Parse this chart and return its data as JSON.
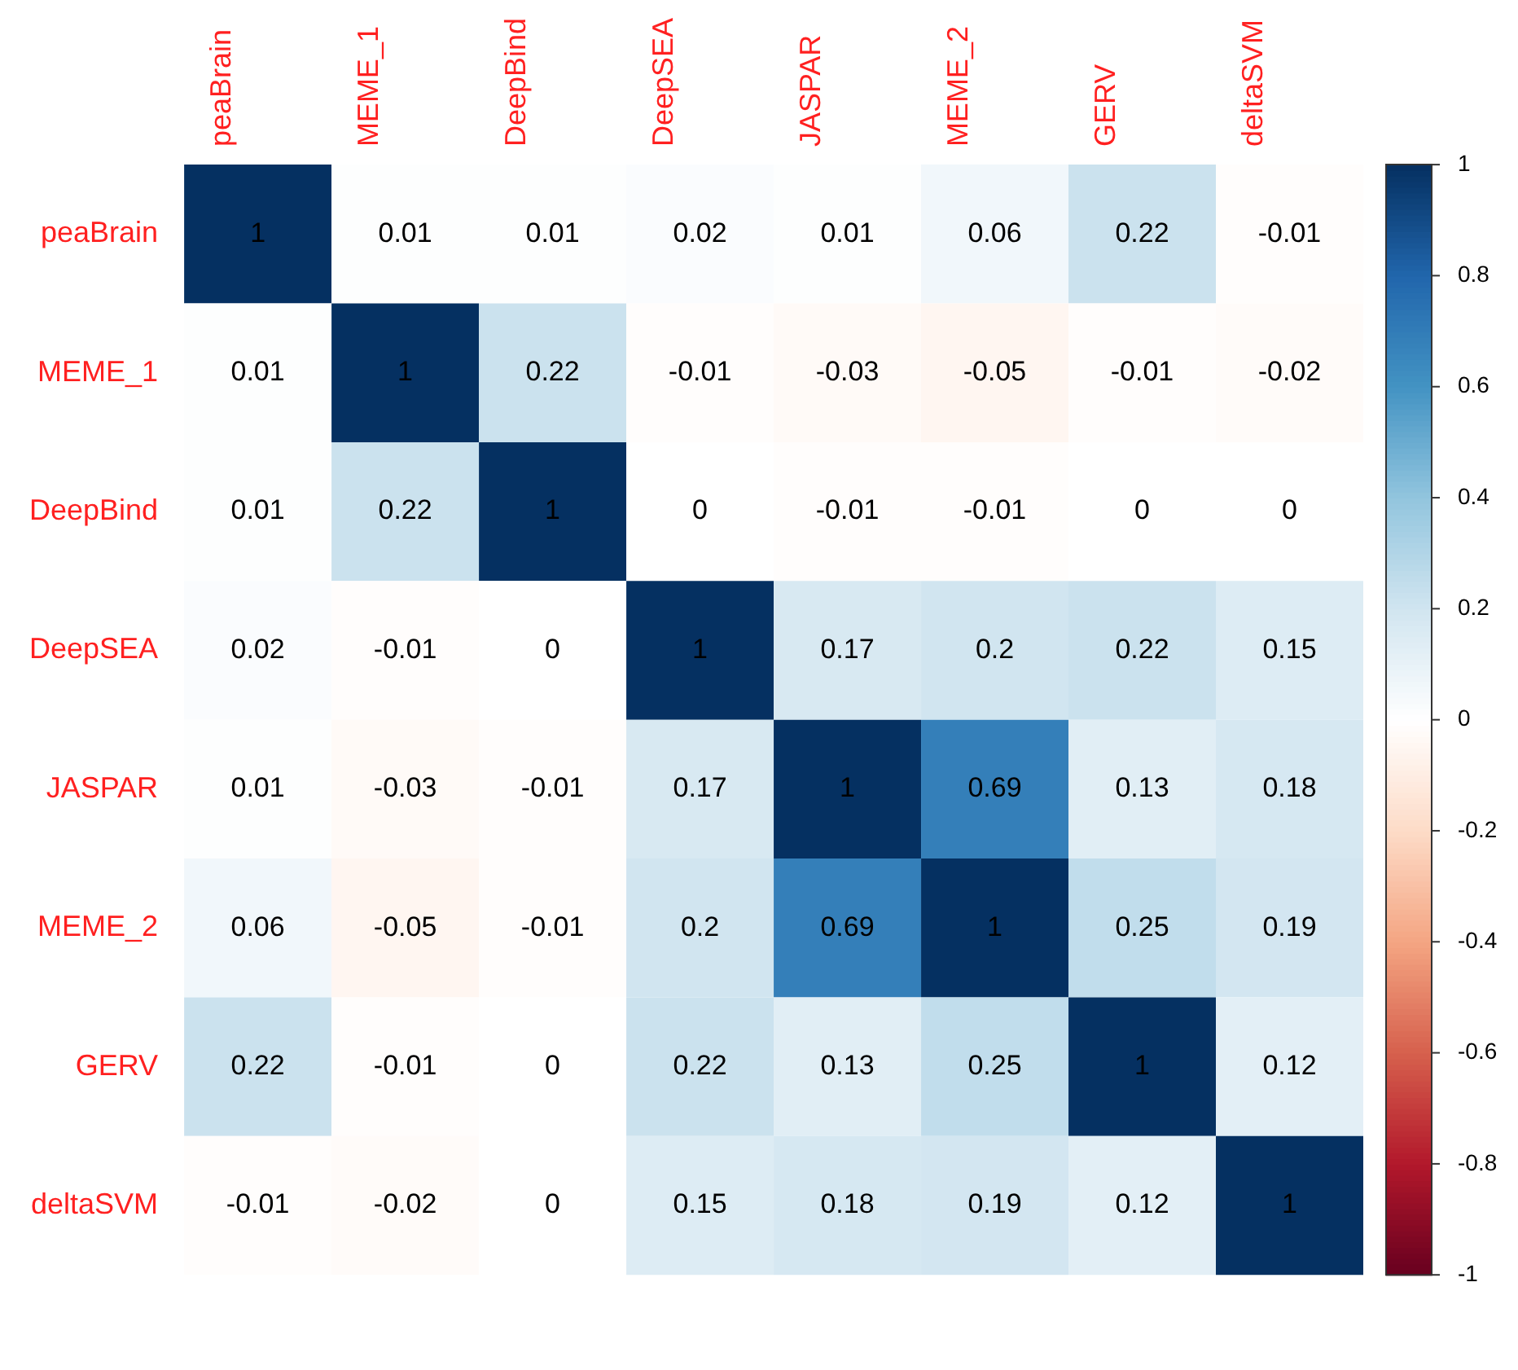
{
  "chart_data": {
    "type": "heatmap",
    "categories": [
      "peaBrain",
      "MEME_1",
      "DeepBind",
      "DeepSEA",
      "JASPAR",
      "MEME_2",
      "GERV",
      "deltaSVM"
    ],
    "y_categories": [
      "peaBrain",
      "MEME_1",
      "DeepBind",
      "DeepSEA",
      "JASPAR",
      "MEME_2",
      "GERV",
      "deltaSVM"
    ],
    "cells": [
      [
        1,
        0.01,
        0.01,
        0.02,
        0.01,
        0.06,
        0.22,
        -0.01
      ],
      [
        0.01,
        1,
        0.22,
        -0.01,
        -0.03,
        -0.05,
        -0.01,
        -0.02
      ],
      [
        0.01,
        0.22,
        1,
        0,
        -0.01,
        -0.01,
        0,
        0
      ],
      [
        0.02,
        -0.01,
        0,
        1,
        0.17,
        0.2,
        0.22,
        0.15
      ],
      [
        0.01,
        -0.03,
        -0.01,
        0.17,
        1,
        0.69,
        0.13,
        0.18
      ],
      [
        0.06,
        -0.05,
        -0.01,
        0.2,
        0.69,
        1,
        0.25,
        0.19
      ],
      [
        0.22,
        -0.01,
        0,
        0.22,
        0.13,
        0.25,
        1,
        0.12
      ],
      [
        -0.01,
        -0.02,
        0,
        0.15,
        0.18,
        0.19,
        0.12,
        1
      ]
    ],
    "clim": [
      -1,
      1
    ],
    "cticks": [
      -1,
      -0.8,
      -0.6,
      -0.4,
      -0.2,
      0,
      0.2,
      0.4,
      0.6,
      0.8,
      1
    ],
    "data_labels": true
  }
}
